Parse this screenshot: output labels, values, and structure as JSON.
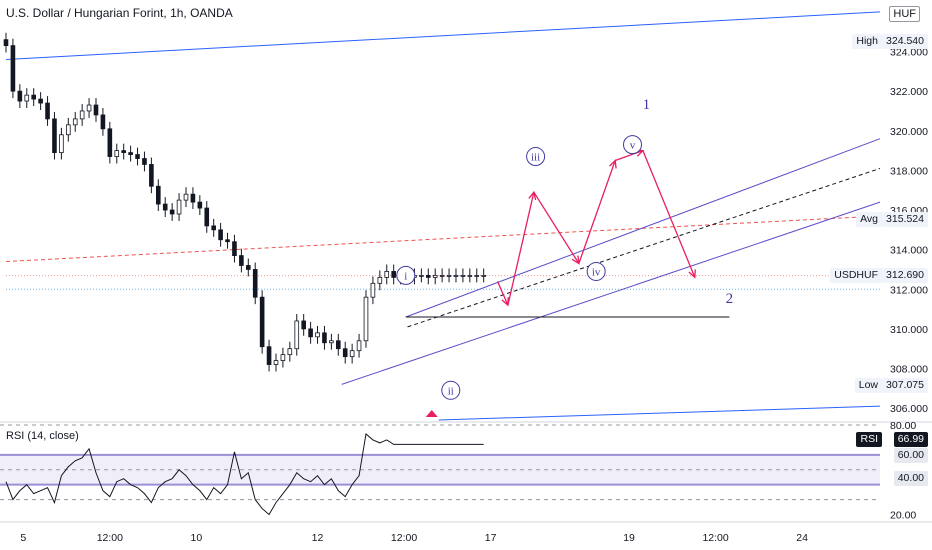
{
  "header": {
    "title": "U.S. Dollar / Hungarian Forint, 1h, OANDA",
    "unit": "HUF"
  },
  "price_tags": {
    "high": {
      "name": "High",
      "value": "324.540"
    },
    "avg": {
      "name": "Avg",
      "value": "315.524"
    },
    "last": {
      "name": "USDHUF",
      "value": "312.690"
    },
    "low": {
      "name": "Low",
      "value": "307.075"
    }
  },
  "rsi_panel": {
    "label": "RSI (14, close)",
    "tag_name": "RSI",
    "tag_value": "66.99",
    "band_upper": "60.00",
    "band_lower": "40.00"
  },
  "colors": {
    "candle": "#131722",
    "trend_blue": "#2962ff",
    "channel": "#5b4fc8",
    "wave_label": "#3f3a9e",
    "arrow": "#e91e63",
    "rsi_line": "#131722",
    "rsi_band": "#9c8fd6"
  },
  "chart_data": [
    {
      "type": "line",
      "name": "price",
      "instrument": "U.S. Dollar / Hungarian Forint, 1h, OANDA",
      "y_ticks": [
        306.0,
        308.0,
        310.0,
        312.0,
        314.0,
        316.0,
        318.0,
        320.0,
        322.0,
        324.0
      ],
      "y_tick_labels": [
        "306.000",
        "308.000",
        "310.000",
        "312.000",
        "314.000",
        "316.000",
        "318.000",
        "320.000",
        "322.000",
        "324.000"
      ],
      "ylim": [
        305.3,
        326.4
      ],
      "x_ticks": [
        {
          "label": "5",
          "pos": 0.0
        },
        {
          "label": "12:00",
          "pos": 0.5
        },
        {
          "label": "10",
          "pos": 1.0
        },
        {
          "label": "12",
          "pos": 1.7
        },
        {
          "label": "12:00",
          "pos": 2.2
        },
        {
          "label": "17",
          "pos": 2.7
        },
        {
          "label": "19",
          "pos": 3.5
        },
        {
          "label": "12:00",
          "pos": 4.0
        },
        {
          "label": "24",
          "pos": 4.5
        }
      ],
      "series": [
        {
          "x": [
            -0.1,
            -0.06,
            -0.02,
            0.02,
            0.06,
            0.1,
            0.14,
            0.18,
            0.22,
            0.26,
            0.3,
            0.34,
            0.38,
            0.42,
            0.46,
            0.5,
            0.54,
            0.58,
            0.62,
            0.66,
            0.7,
            0.74,
            0.78,
            0.82,
            0.86,
            0.9,
            0.94,
            0.98,
            1.02,
            1.06,
            1.1,
            1.14,
            1.18,
            1.22,
            1.26,
            1.3,
            1.34,
            1.38,
            1.42,
            1.46,
            1.5,
            1.54,
            1.58,
            1.62,
            1.66,
            1.7,
            1.74,
            1.78,
            1.82,
            1.86,
            1.9,
            1.94,
            1.98,
            2.02,
            2.06,
            2.1,
            2.14,
            2.18,
            2.22,
            2.26,
            2.3,
            2.34,
            2.38,
            2.42,
            2.46,
            2.5,
            2.54,
            2.58,
            2.62,
            2.66
          ],
          "values": [
            324.3,
            322.0,
            321.5,
            321.8,
            321.6,
            321.4,
            320.6,
            318.9,
            319.8,
            320.3,
            320.6,
            321.0,
            321.3,
            320.8,
            320.1,
            318.7,
            319.0,
            318.9,
            318.8,
            318.6,
            318.3,
            317.2,
            316.3,
            316.0,
            315.8,
            316.5,
            316.8,
            316.4,
            316.1,
            315.2,
            315.0,
            314.5,
            314.4,
            313.7,
            313.2,
            313.0,
            311.6,
            309.1,
            308.2,
            308.4,
            308.7,
            309.0,
            310.4,
            310.0,
            309.6,
            309.8,
            309.3,
            309.4,
            309.0,
            308.6,
            308.9,
            309.4,
            311.6,
            312.3,
            312.6,
            312.9,
            312.6,
            312.7,
            312.6,
            312.7,
            312.7,
            312.6,
            312.7,
            312.7,
            312.7,
            312.7,
            312.7,
            312.7,
            312.7,
            312.7
          ]
        }
      ],
      "reference_lines": [
        {
          "name": "High",
          "value": 324.54
        },
        {
          "name": "Avg",
          "value": 315.524
        },
        {
          "name": "USDHUF",
          "value": 312.69
        },
        {
          "name": "Low",
          "value": 307.075
        }
      ],
      "wave_labels": [
        {
          "text": "i",
          "x": 2.21,
          "y": 312.7,
          "circled": true
        },
        {
          "text": "ii",
          "x": 2.47,
          "y": 306.9,
          "circled": true
        },
        {
          "text": "iii",
          "x": 2.96,
          "y": 318.7,
          "circled": true
        },
        {
          "text": "iv",
          "x": 3.31,
          "y": 312.9,
          "circled": true
        },
        {
          "text": "v",
          "x": 3.52,
          "y": 319.3,
          "circled": true
        },
        {
          "text": "1",
          "x": 3.6,
          "y": 321.3,
          "circled": false
        },
        {
          "text": "2",
          "x": 4.08,
          "y": 311.5,
          "circled": false
        }
      ],
      "projected_path": [
        {
          "x": 2.74,
          "y": 312.4
        },
        {
          "x": 2.8,
          "y": 311.2
        },
        {
          "x": 2.95,
          "y": 316.9
        },
        {
          "x": 3.21,
          "y": 313.3
        },
        {
          "x": 3.42,
          "y": 318.5
        },
        {
          "x": 3.58,
          "y": 319.0
        },
        {
          "x": 3.88,
          "y": 312.6
        }
      ],
      "grid": false
    },
    {
      "type": "line",
      "name": "RSI (14, close)",
      "y_ticks": [
        20.0,
        40.0,
        60.0,
        80.0
      ],
      "y_tick_labels": [
        "20.00",
        "40.00",
        "60.00",
        "80.00"
      ],
      "ylim": [
        15,
        82
      ],
      "bands": [
        40,
        60
      ],
      "series": [
        {
          "x": [
            -0.1,
            -0.06,
            -0.02,
            0.02,
            0.06,
            0.1,
            0.14,
            0.18,
            0.22,
            0.26,
            0.3,
            0.34,
            0.38,
            0.42,
            0.46,
            0.5,
            0.54,
            0.58,
            0.62,
            0.66,
            0.7,
            0.74,
            0.78,
            0.82,
            0.86,
            0.9,
            0.94,
            0.98,
            1.02,
            1.06,
            1.1,
            1.14,
            1.18,
            1.22,
            1.26,
            1.3,
            1.34,
            1.38,
            1.42,
            1.46,
            1.5,
            1.54,
            1.58,
            1.62,
            1.66,
            1.7,
            1.74,
            1.78,
            1.82,
            1.86,
            1.9,
            1.94,
            1.98,
            2.02,
            2.06,
            2.1,
            2.14,
            2.18,
            2.22,
            2.26,
            2.3,
            2.34,
            2.38,
            2.42,
            2.46,
            2.5,
            2.54,
            2.58,
            2.62,
            2.66
          ],
          "values": [
            42,
            30,
            36,
            40,
            34,
            36,
            38,
            28,
            46,
            52,
            56,
            58,
            64,
            48,
            36,
            32,
            42,
            44,
            40,
            38,
            34,
            28,
            38,
            42,
            44,
            50,
            46,
            40,
            36,
            30,
            38,
            34,
            40,
            62,
            44,
            48,
            30,
            24,
            20,
            28,
            34,
            40,
            48,
            44,
            42,
            46,
            40,
            44,
            36,
            32,
            40,
            46,
            74,
            70,
            68,
            70,
            67,
            67,
            67,
            67,
            67,
            67,
            67,
            67,
            67,
            67,
            67,
            67,
            67,
            67
          ]
        }
      ],
      "grid": false
    }
  ]
}
